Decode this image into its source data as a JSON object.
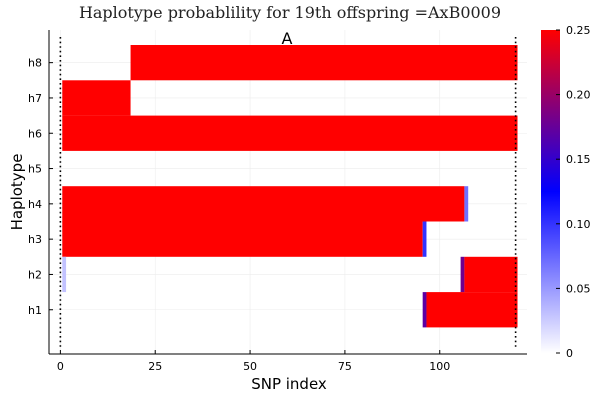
{
  "chart_data": {
    "type": "heatmap",
    "title": "Haplotype probablility for 19th offspring =AxB0009",
    "xlabel": "SNP index",
    "ylabel": "Haplotype",
    "annotation": "A",
    "xlim": [
      -3,
      123
    ],
    "x_ticks": [
      0,
      25,
      50,
      75,
      100
    ],
    "haplotypes": [
      "h1",
      "h2",
      "h3",
      "h4",
      "h5",
      "h6",
      "h7",
      "h8"
    ],
    "dotted_vlines": [
      0,
      120
    ],
    "colorbar": {
      "min": 0,
      "max": 0.25,
      "ticks": [
        "0",
        "0.05",
        "0.10",
        "0.15",
        "0.20",
        "0.25"
      ],
      "gradient": [
        "#ffffff",
        "#0000ff",
        "#ff0000"
      ]
    },
    "segments": [
      {
        "haplotype": "h8",
        "from": 19,
        "to": 120,
        "value": 0.25
      },
      {
        "haplotype": "h7",
        "from": 1,
        "to": 18,
        "value": 0.25
      },
      {
        "haplotype": "h6",
        "from": 1,
        "to": 120,
        "value": 0.25
      },
      {
        "haplotype": "h4",
        "from": 1,
        "to": 106,
        "value": 0.25
      },
      {
        "haplotype": "h4",
        "from": 107,
        "to": 107,
        "value": 0.07
      },
      {
        "haplotype": "h3",
        "from": 1,
        "to": 95,
        "value": 0.25
      },
      {
        "haplotype": "h3",
        "from": 96,
        "to": 96,
        "value": 0.1
      },
      {
        "haplotype": "h2",
        "from": 1,
        "to": 1,
        "value": 0.03
      },
      {
        "haplotype": "h2",
        "from": 106,
        "to": 106,
        "value": 0.18
      },
      {
        "haplotype": "h2",
        "from": 107,
        "to": 120,
        "value": 0.25
      },
      {
        "haplotype": "h1",
        "from": 96,
        "to": 96,
        "value": 0.17
      },
      {
        "haplotype": "h1",
        "from": 97,
        "to": 120,
        "value": 0.25
      }
    ]
  }
}
